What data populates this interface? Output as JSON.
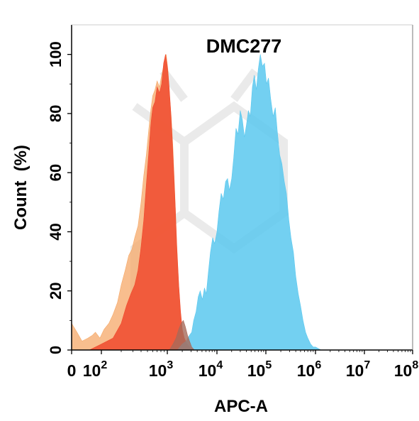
{
  "chart_data": {
    "type": "area",
    "title": "DMC277",
    "xlabel": "APC-A",
    "ylabel": "Count  (%)",
    "x_scale": "biexponential-log",
    "xlim": [
      0,
      100000000
    ],
    "ylim": [
      0,
      110
    ],
    "grid": false,
    "legend": "none",
    "x_ticks": [
      {
        "value": 0,
        "base": "0",
        "exp": ""
      },
      {
        "value": 100,
        "base": "10",
        "exp": "2"
      },
      {
        "value": 1000,
        "base": "10",
        "exp": "3"
      },
      {
        "value": 10000,
        "base": "10",
        "exp": "4"
      },
      {
        "value": 100000,
        "base": "10",
        "exp": "5"
      },
      {
        "value": 1000000,
        "base": "10",
        "exp": "6"
      },
      {
        "value": 10000000,
        "base": "10",
        "exp": "7"
      },
      {
        "value": 100000000,
        "base": "10",
        "exp": "8"
      }
    ],
    "y_ticks": [
      0,
      20,
      40,
      60,
      80,
      100
    ],
    "series": [
      {
        "color": "#f5a868",
        "opacity": 0.75,
        "points": [
          [
            0,
            9
          ],
          [
            18,
            6
          ],
          [
            35,
            3
          ],
          [
            55,
            4
          ],
          [
            70,
            5
          ],
          [
            80,
            6
          ],
          [
            95,
            4
          ],
          [
            110,
            7
          ],
          [
            130,
            9
          ],
          [
            150,
            12
          ],
          [
            175,
            16
          ],
          [
            200,
            22
          ],
          [
            230,
            27
          ],
          [
            260,
            32
          ],
          [
            290,
            34
          ],
          [
            320,
            38
          ],
          [
            360,
            42
          ],
          [
            400,
            50
          ],
          [
            440,
            59
          ],
          [
            480,
            66
          ],
          [
            520,
            74
          ],
          [
            560,
            81
          ],
          [
            600,
            86
          ],
          [
            650,
            88
          ],
          [
            700,
            91
          ],
          [
            760,
            89
          ],
          [
            820,
            93
          ],
          [
            900,
            97
          ],
          [
            960,
            100
          ],
          [
            1040,
            94
          ],
          [
            1120,
            85
          ],
          [
            1200,
            79
          ],
          [
            1300,
            68
          ],
          [
            1420,
            52
          ],
          [
            1550,
            36
          ],
          [
            1700,
            22
          ],
          [
            1850,
            11
          ],
          [
            2000,
            5
          ],
          [
            2300,
            2
          ],
          [
            2700,
            1
          ],
          [
            3200,
            0
          ]
        ]
      },
      {
        "color": "#f04a2e",
        "opacity": 0.85,
        "points": [
          [
            0,
            0
          ],
          [
            60,
            0
          ],
          [
            100,
            2
          ],
          [
            150,
            4
          ],
          [
            200,
            9
          ],
          [
            240,
            15
          ],
          [
            280,
            19
          ],
          [
            320,
            22
          ],
          [
            360,
            27
          ],
          [
            400,
            35
          ],
          [
            440,
            44
          ],
          [
            480,
            56
          ],
          [
            520,
            66
          ],
          [
            560,
            76
          ],
          [
            600,
            82
          ],
          [
            650,
            84
          ],
          [
            700,
            89
          ],
          [
            760,
            87
          ],
          [
            820,
            90
          ],
          [
            880,
            97
          ],
          [
            940,
            100
          ],
          [
            1000,
            96
          ],
          [
            1080,
            90
          ],
          [
            1160,
            82
          ],
          [
            1250,
            72
          ],
          [
            1350,
            60
          ],
          [
            1450,
            48
          ],
          [
            1550,
            35
          ],
          [
            1700,
            22
          ],
          [
            1850,
            13
          ],
          [
            2000,
            7
          ],
          [
            2200,
            4
          ],
          [
            2500,
            2
          ],
          [
            2800,
            1
          ],
          [
            3300,
            0
          ]
        ]
      },
      {
        "color": "#5bc8ef",
        "opacity": 0.85,
        "points": [
          [
            1200,
            0
          ],
          [
            1600,
            0
          ],
          [
            2000,
            2
          ],
          [
            2400,
            3
          ],
          [
            2800,
            5
          ],
          [
            3100,
            6
          ],
          [
            3400,
            10
          ],
          [
            3800,
            13
          ],
          [
            4200,
            18
          ],
          [
            4600,
            20
          ],
          [
            5100,
            17
          ],
          [
            5600,
            21
          ],
          [
            6100,
            19
          ],
          [
            6700,
            26
          ],
          [
            7400,
            33
          ],
          [
            8200,
            38
          ],
          [
            9000,
            36
          ],
          [
            10000,
            40
          ],
          [
            11000,
            47
          ],
          [
            12200,
            53
          ],
          [
            13500,
            51
          ],
          [
            15000,
            57
          ],
          [
            16500,
            58
          ],
          [
            18000,
            54
          ],
          [
            20000,
            58
          ],
          [
            22000,
            65
          ],
          [
            24500,
            75
          ],
          [
            27000,
            73
          ],
          [
            30000,
            81
          ],
          [
            33000,
            78
          ],
          [
            36500,
            72
          ],
          [
            40000,
            76
          ],
          [
            44000,
            81
          ],
          [
            48000,
            79
          ],
          [
            53000,
            89
          ],
          [
            58000,
            93
          ],
          [
            64000,
            88
          ],
          [
            70000,
            95
          ],
          [
            77000,
            100
          ],
          [
            85000,
            96
          ],
          [
            94000,
            97
          ],
          [
            103000,
            90
          ],
          [
            113000,
            92
          ],
          [
            125000,
            85
          ],
          [
            140000,
            79
          ],
          [
            155000,
            82
          ],
          [
            170000,
            74
          ],
          [
            190000,
            66
          ],
          [
            210000,
            63
          ],
          [
            235000,
            57
          ],
          [
            260000,
            53
          ],
          [
            290000,
            44
          ],
          [
            320000,
            38
          ],
          [
            360000,
            33
          ],
          [
            400000,
            25
          ],
          [
            450000,
            19
          ],
          [
            500000,
            15
          ],
          [
            560000,
            10
          ],
          [
            630000,
            6
          ],
          [
            700000,
            4
          ],
          [
            800000,
            2
          ],
          [
            900000,
            1
          ],
          [
            1000000,
            1
          ],
          [
            1300000,
            0
          ]
        ]
      },
      {
        "color": "#a66a5a",
        "opacity": 0.8,
        "points": [
          [
            900,
            0
          ],
          [
            1100,
            0
          ],
          [
            1300,
            2
          ],
          [
            1500,
            4
          ],
          [
            1700,
            7
          ],
          [
            1900,
            9
          ],
          [
            2100,
            10
          ],
          [
            2300,
            8
          ],
          [
            2550,
            5
          ],
          [
            2800,
            3
          ],
          [
            3100,
            1
          ],
          [
            3500,
            0
          ]
        ]
      }
    ]
  }
}
